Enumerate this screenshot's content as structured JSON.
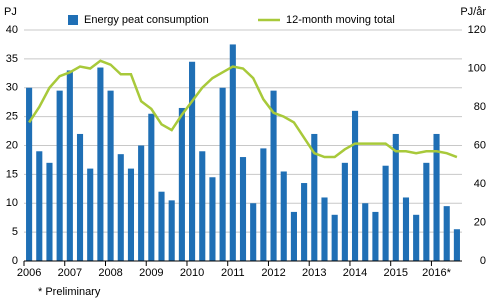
{
  "chart_data": {
    "type": "bar",
    "y_label": "PJ",
    "y2_label": "PJ/år",
    "footnote": "* Preliminary",
    "categories": [
      "2006",
      null,
      null,
      null,
      "2007",
      null,
      null,
      null,
      "2008",
      null,
      null,
      null,
      "2009",
      null,
      null,
      null,
      "2010",
      null,
      null,
      null,
      "2011",
      null,
      null,
      null,
      "2012",
      null,
      null,
      null,
      "2013",
      null,
      null,
      null,
      "2014",
      null,
      null,
      null,
      "2015",
      null,
      null,
      null,
      "2016*",
      null,
      null
    ],
    "series": [
      {
        "name": "Energy peat consumption",
        "color": "#1f6fb5",
        "type": "bar",
        "values": [
          30,
          19,
          17,
          29.5,
          33,
          22,
          16,
          33.5,
          29.5,
          18.5,
          16,
          20,
          25.5,
          12,
          10.5,
          26.5,
          34.5,
          19,
          14.5,
          30,
          37.5,
          18,
          10,
          19.5,
          29.5,
          15.5,
          8.5,
          13.5,
          22,
          11,
          8,
          17,
          26,
          10,
          8.5,
          16.5,
          22,
          11,
          8,
          17,
          22,
          9.5,
          5.5
        ]
      },
      {
        "name": "12-month moving total",
        "color": "#a8c93a",
        "type": "line",
        "axis": "y2",
        "values": [
          72,
          80,
          90,
          96,
          98,
          101,
          100,
          104,
          102,
          97,
          97,
          83,
          79,
          71,
          68,
          76,
          83,
          90,
          95,
          98,
          101,
          100,
          95,
          84,
          77,
          75,
          72,
          64,
          56,
          54,
          54,
          58,
          61,
          61,
          61,
          61,
          57,
          57,
          56,
          57,
          57,
          56,
          54
        ]
      }
    ],
    "ylim": [
      0,
      40
    ],
    "yticks": [
      0,
      5,
      10,
      15,
      20,
      25,
      30,
      35,
      40
    ],
    "y2lim": [
      0,
      120
    ],
    "y2ticks": [
      0,
      20,
      40,
      60,
      80,
      100,
      120
    ],
    "grid": true
  }
}
